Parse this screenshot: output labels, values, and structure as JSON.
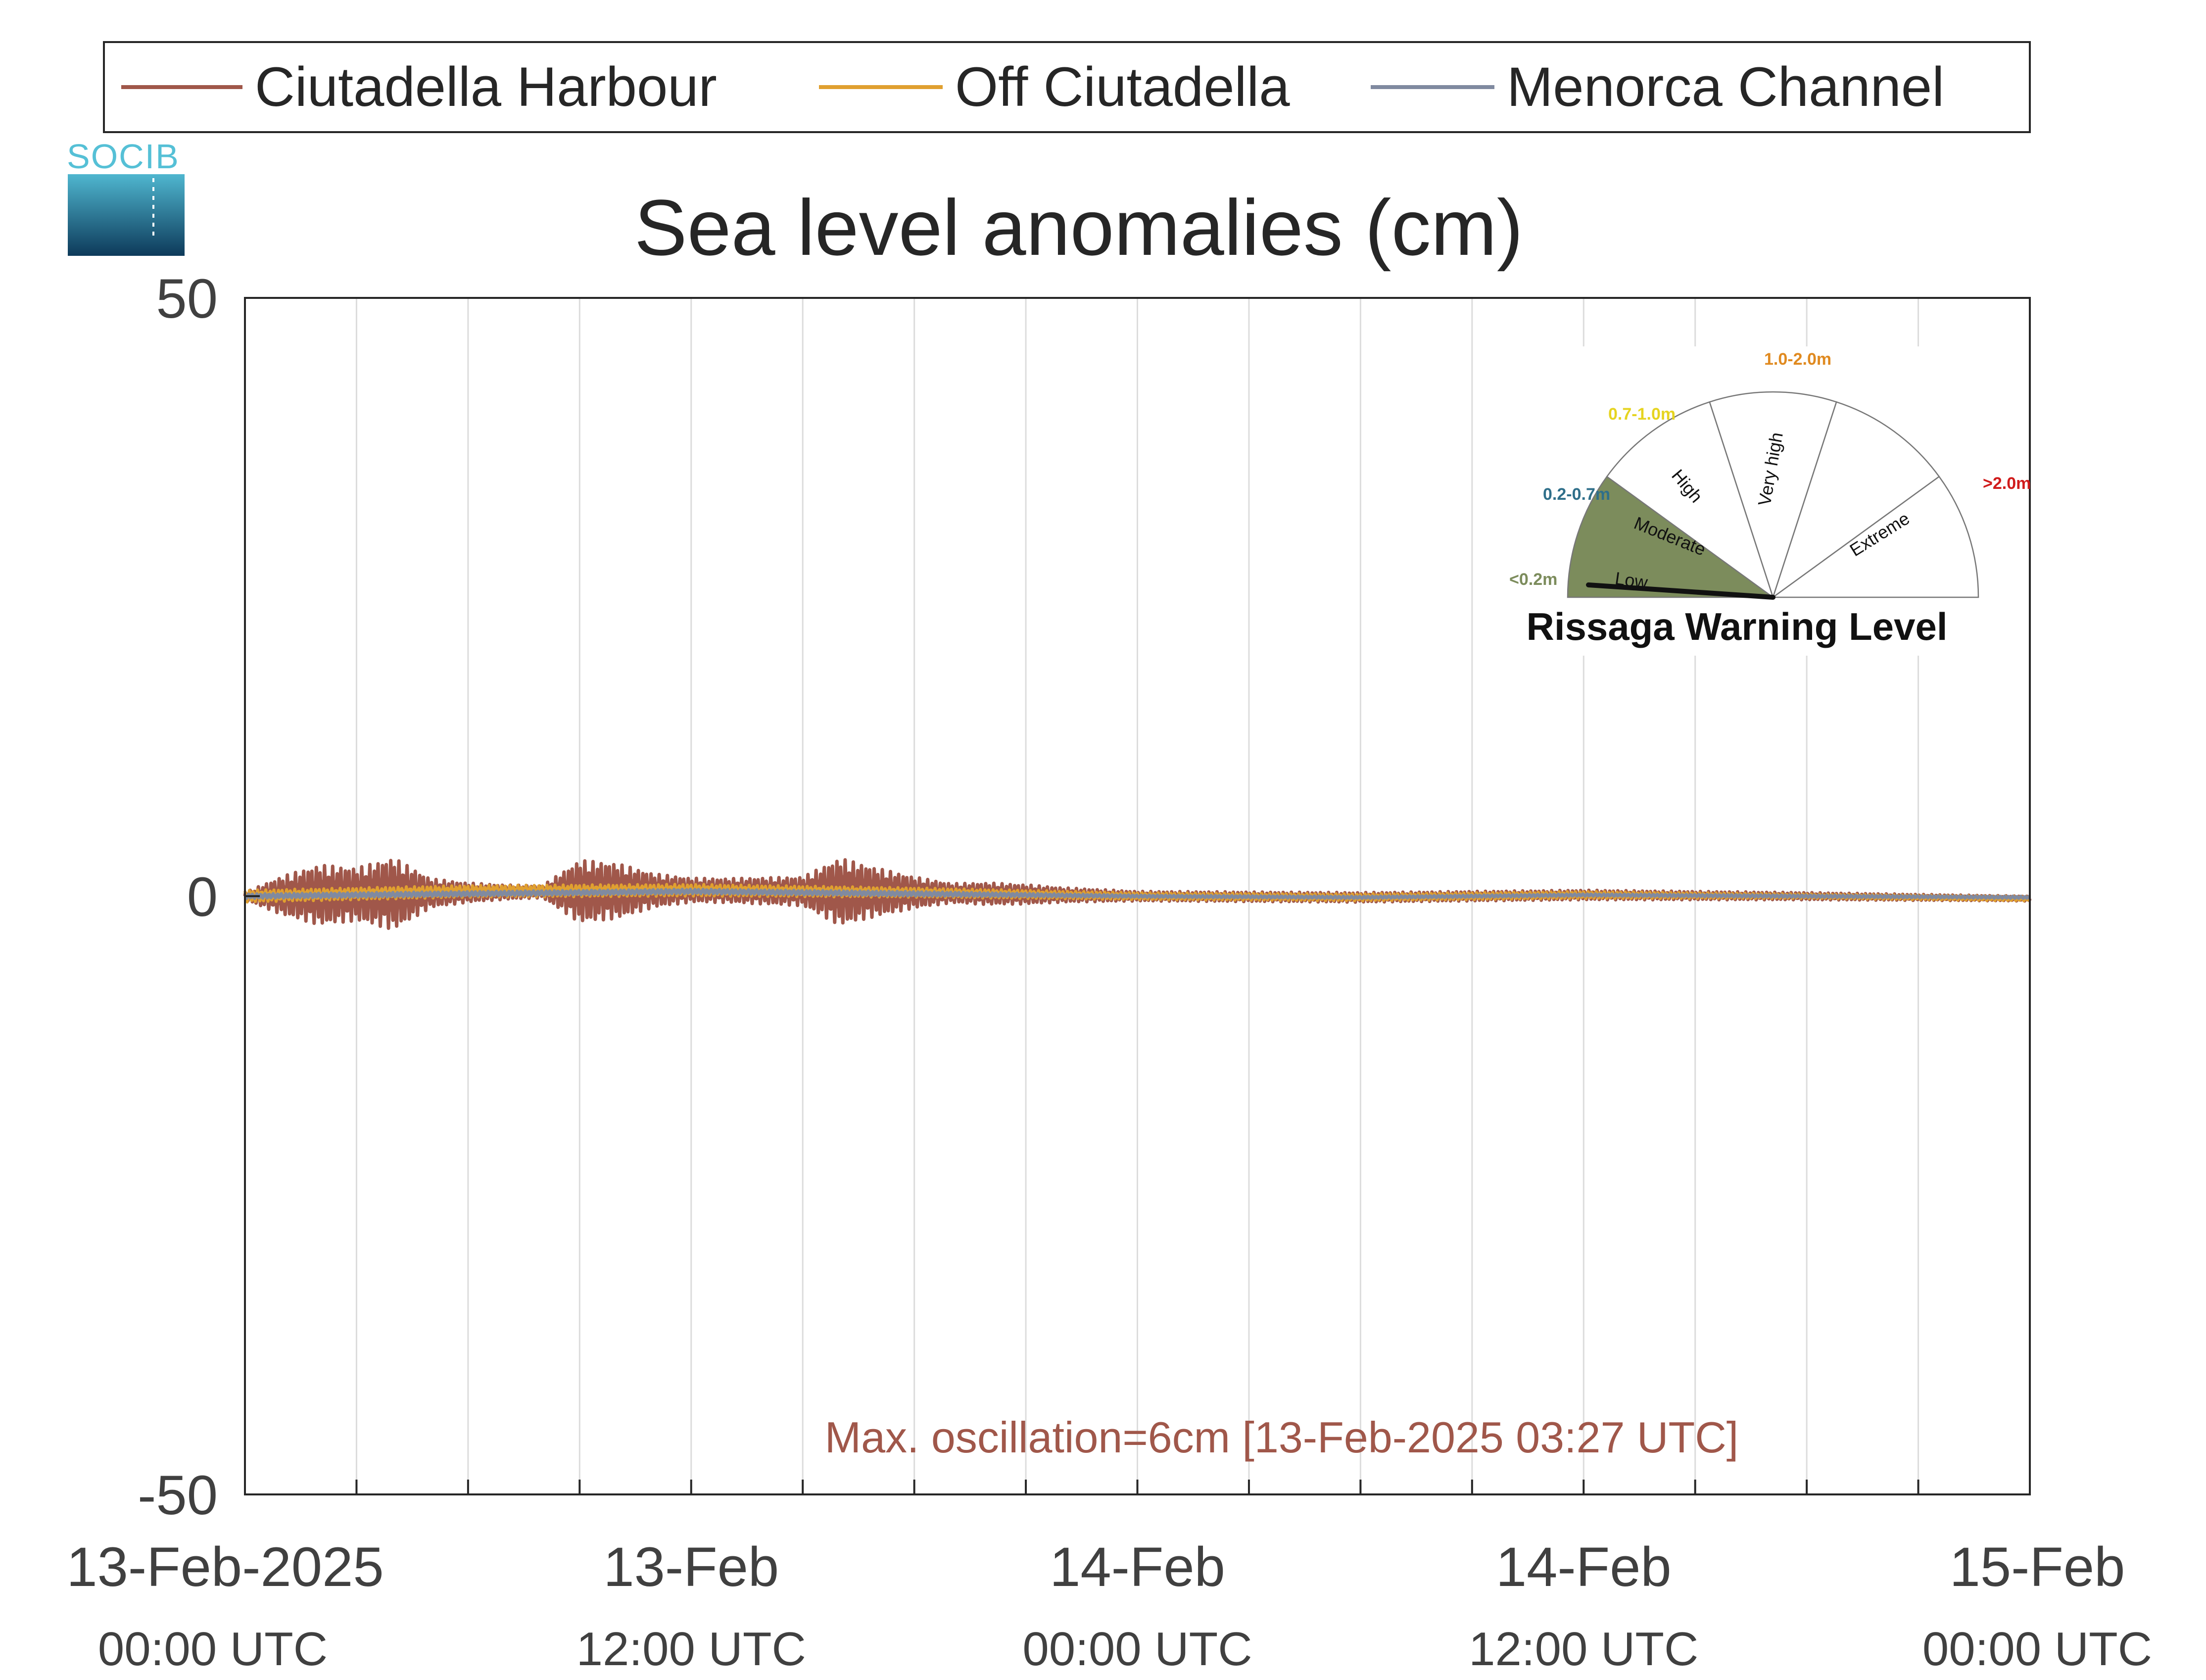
{
  "logo": {
    "text": "SOCIB",
    "icon": "socib-logo-icon"
  },
  "legend": [
    {
      "name": "Ciutadella Harbour",
      "color": "#a0574a"
    },
    {
      "name": "Off Ciutadella",
      "color": "#e0a030"
    },
    {
      "name": "Menorca Channel",
      "color": "#808aa0"
    }
  ],
  "chart_data": {
    "type": "line",
    "title": "Sea level anomalies (cm)",
    "xlabel": "",
    "ylabel": "",
    "ylim": [
      -50,
      50
    ],
    "yticks": [
      50,
      0,
      -50
    ],
    "xlim_hours": [
      0,
      48
    ],
    "x_unit": "hours since 13-Feb-2025 00:00 UTC",
    "grid": "vertical",
    "legend_position": "top",
    "xtick_labels": [
      {
        "hour": 0,
        "date": "13-Feb-2025",
        "time": "00:00 UTC"
      },
      {
        "hour": 12,
        "date": "13-Feb",
        "time": "12:00 UTC"
      },
      {
        "hour": 24,
        "date": "14-Feb",
        "time": "00:00 UTC"
      },
      {
        "hour": 36,
        "date": "14-Feb",
        "time": "12:00 UTC"
      },
      {
        "hour": 48,
        "date": "15-Feb",
        "time": "00:00 UTC"
      }
    ],
    "series": [
      {
        "name": "Ciutadella Harbour",
        "color": "#a0574a",
        "envelope_x": [
          0,
          1,
          2,
          3,
          4,
          5,
          6,
          7,
          8,
          9,
          10,
          11,
          12,
          13,
          14,
          15,
          16,
          17,
          18,
          19,
          20,
          21,
          22,
          23,
          24,
          30,
          36,
          42,
          48
        ],
        "envelope_amplitude": [
          0.3,
          1.6,
          2.5,
          2.2,
          3.0,
          1.2,
          0.8,
          0.6,
          0.5,
          2.6,
          2.3,
          1.4,
          1.0,
          1.0,
          1.1,
          1.2,
          2.8,
          2.0,
          1.3,
          0.8,
          0.9,
          0.8,
          0.6,
          0.5,
          0.4,
          0.4,
          0.4,
          0.3,
          0.2
        ],
        "mean_x": [
          0,
          6,
          12,
          18,
          24,
          30,
          36,
          42,
          48
        ],
        "mean_y": [
          0,
          0.3,
          0.5,
          0.3,
          0.0,
          -0.1,
          0.1,
          0.0,
          -0.2
        ]
      },
      {
        "name": "Off Ciutadella",
        "color": "#e0a030",
        "envelope_x": [
          0,
          6,
          12,
          18,
          24,
          30,
          36,
          42,
          48
        ],
        "envelope_amplitude": [
          0.5,
          0.5,
          0.5,
          0.4,
          0.3,
          0.3,
          0.3,
          0.2,
          0.2
        ],
        "mean_x": [
          0,
          6,
          12,
          18,
          24,
          30,
          36,
          42,
          48
        ],
        "mean_y": [
          0,
          0.4,
          0.5,
          0.3,
          0.0,
          -0.1,
          0.1,
          0.0,
          -0.2
        ]
      },
      {
        "name": "Menorca Channel",
        "color": "#808aa0",
        "envelope_x": [
          0,
          6,
          12,
          18,
          24,
          30,
          36,
          42,
          48
        ],
        "envelope_amplitude": [
          0.2,
          0.2,
          0.2,
          0.2,
          0.1,
          0.1,
          0.1,
          0.1,
          0.1
        ],
        "mean_x": [
          0,
          6,
          12,
          18,
          24,
          30,
          36,
          42,
          48
        ],
        "mean_y": [
          0,
          0.2,
          0.4,
          0.2,
          0.0,
          -0.1,
          0.1,
          0.0,
          -0.1
        ]
      }
    ],
    "annotation": {
      "text": "Max. oscillation=6cm [13-Feb-2025 03:27 UTC]",
      "color": "#a0574a"
    }
  },
  "gauge": {
    "title": "Rissaga Warning Level",
    "current_level": "Low",
    "levels": [
      {
        "name": "Low",
        "range": "<0.2m",
        "color": "#7c8c5c",
        "range_color": "#7c8c5c"
      },
      {
        "name": "Moderate",
        "range": "0.2-0.7m",
        "color": "#ffffff",
        "range_color": "#2f6f8a"
      },
      {
        "name": "High",
        "range": "0.7-1.0m",
        "color": "#ffffff",
        "range_color": "#e6d420"
      },
      {
        "name": "Very high",
        "range": "1.0-2.0m",
        "color": "#ffffff",
        "range_color": "#e08a20"
      },
      {
        "name": "Extreme",
        "range": ">2.0m",
        "color": "#ffffff",
        "range_color": "#d01c1c"
      }
    ]
  }
}
